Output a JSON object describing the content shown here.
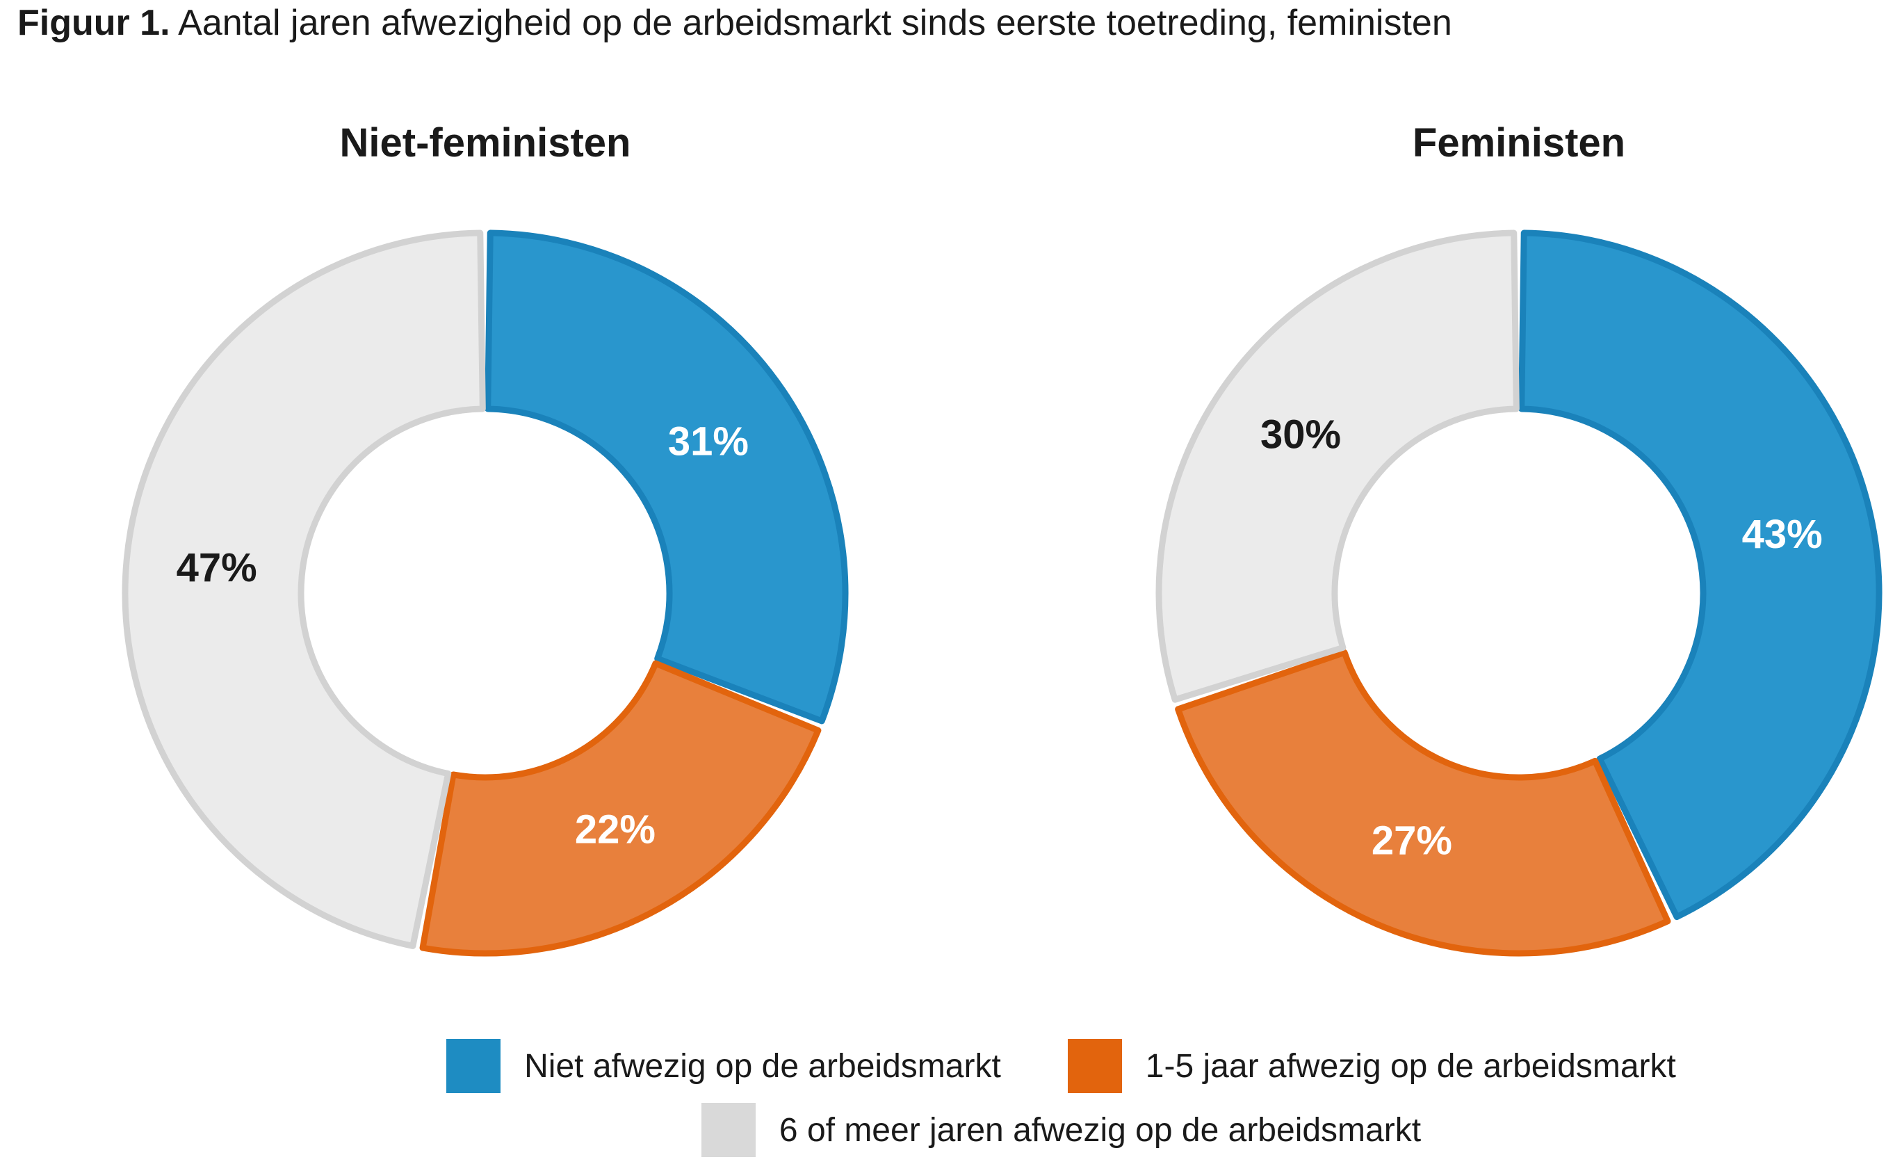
{
  "figure_title": {
    "prefix": "Figuur 1.",
    "rest": " Aantal jaren afwezigheid op de arbeidsmarkt sinds eerste toetreding, feministen"
  },
  "chart_data": [
    {
      "type": "pie",
      "subtype": "donut",
      "title": "Niet-feministen",
      "categories": [
        "Niet afwezig op de arbeidsmarkt",
        "1-5 jaar afwezig op de arbeidsmarkt",
        "6 of meer jaren afwezig op de arbeidsmarkt"
      ],
      "values": [
        31,
        22,
        47
      ],
      "labels": [
        "31%",
        "22%",
        "47%"
      ],
      "start_angle_deg": 0,
      "direction": "clockwise",
      "legend_position": "bottom"
    },
    {
      "type": "pie",
      "subtype": "donut",
      "title": "Feministen",
      "categories": [
        "Niet afwezig op de arbeidsmarkt",
        "1-5 jaar afwezig op de arbeidsmarkt",
        "6 of meer jaren afwezig op de arbeidsmarkt"
      ],
      "values": [
        43,
        27,
        30
      ],
      "labels": [
        "43%",
        "27%",
        "30%"
      ],
      "start_angle_deg": 0,
      "direction": "clockwise",
      "legend_position": "bottom"
    }
  ],
  "series_colors": [
    {
      "name": "blue",
      "fill": "#2996cd",
      "stroke": "#1a82ba",
      "label_color": "#ffffff"
    },
    {
      "name": "orange",
      "fill": "#e8803c",
      "stroke": "#e2640d",
      "label_color": "#ffffff"
    },
    {
      "name": "gray",
      "fill": "#ebebeb",
      "stroke": "#d2d2d2",
      "label_color": "#1a1a1a"
    }
  ],
  "legend": {
    "items": [
      {
        "label": "Niet afwezig op de arbeidsmarkt",
        "swatch": "#1e8cc2"
      },
      {
        "label": "1-5 jaar afwezig op de arbeidsmarkt",
        "swatch": "#e2640d"
      },
      {
        "label": "6 of meer jaren afwezig op de arbeidsmarkt",
        "swatch": "#d9d9d9"
      }
    ]
  }
}
